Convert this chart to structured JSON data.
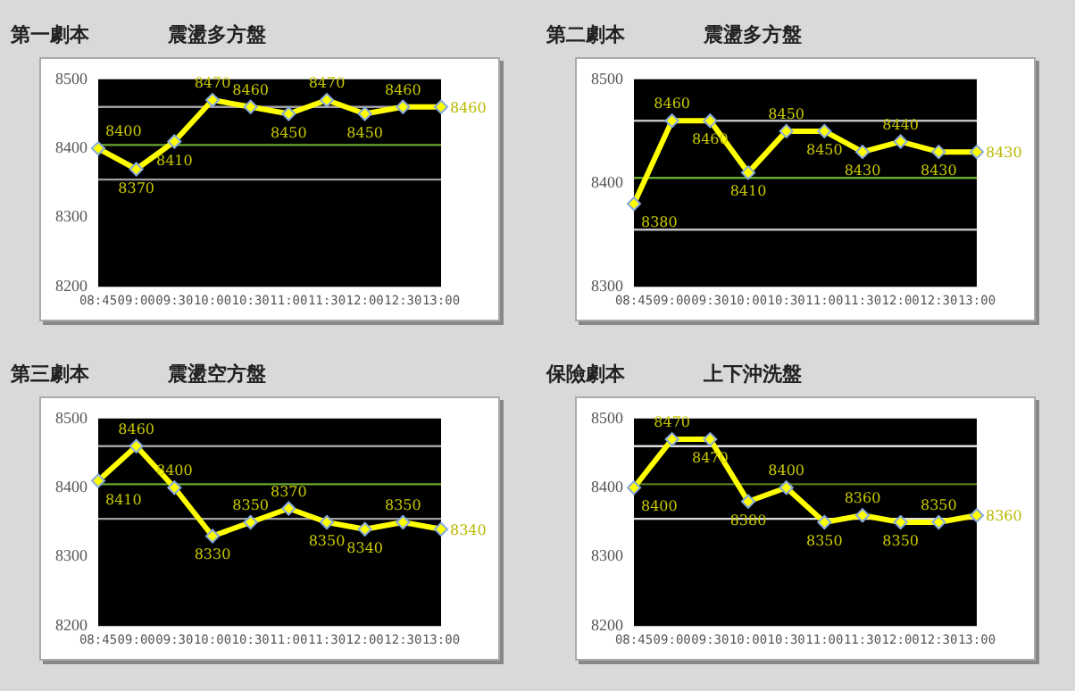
{
  "chart_data": [
    {
      "type": "line",
      "title": "第一劇本",
      "subtitle": "震盪多方盤",
      "categories": [
        "08:45",
        "09:00",
        "09:30",
        "10:00",
        "10:30",
        "11:00",
        "11:30",
        "12:00",
        "12:30",
        "13:00"
      ],
      "series": [
        {
          "color": "#ffff00",
          "values": [
            8400,
            8370,
            8410,
            8470,
            8460,
            8450,
            8470,
            8450,
            8460,
            8460
          ]
        }
      ],
      "ylim": [
        8200,
        8500
      ],
      "yticks": [
        8200,
        8300,
        8400,
        8500
      ],
      "grid": false,
      "legend": false,
      "marker": "diamond",
      "line_style": "solid",
      "data_labels": true,
      "ref_lines": [
        {
          "axis": "y",
          "value": 8460,
          "color": "#a0a0a0"
        },
        {
          "axis": "y",
          "value": 8405,
          "color": "#6aa830"
        },
        {
          "axis": "y",
          "value": 8355,
          "color": "#a0a0a0"
        }
      ]
    },
    {
      "type": "line",
      "title": "第二劇本",
      "subtitle": "震盪多方盤",
      "categories": [
        "08:45",
        "09:00",
        "09:30",
        "10:00",
        "10:30",
        "11:00",
        "11:30",
        "12:00",
        "12:30",
        "13:00"
      ],
      "series": [
        {
          "color": "#ffff00",
          "values": [
            8380,
            8460,
            8460,
            8410,
            8450,
            8450,
            8430,
            8440,
            8430,
            8430
          ]
        }
      ],
      "ylim": [
        8300,
        8500
      ],
      "yticks": [
        8300,
        8400,
        8500
      ],
      "grid": false,
      "legend": false,
      "marker": "diamond",
      "line_style": "solid",
      "data_labels": true,
      "ref_lines": [
        {
          "axis": "y",
          "value": 8460,
          "color": "#c0c0c0"
        },
        {
          "axis": "y",
          "value": 8405,
          "color": "#6aa830"
        },
        {
          "axis": "y",
          "value": 8355,
          "color": "#c0c0c0"
        }
      ]
    },
    {
      "type": "line",
      "title": "第三劇本",
      "subtitle": "震盪空方盤",
      "categories": [
        "08:45",
        "09:00",
        "09:30",
        "10:00",
        "10:30",
        "11:00",
        "11:30",
        "12:00",
        "12:30",
        "13:00"
      ],
      "series": [
        {
          "color": "#ffff00",
          "values": [
            8410,
            8460,
            8400,
            8330,
            8350,
            8370,
            8350,
            8340,
            8350,
            8340
          ]
        }
      ],
      "ylim": [
        8200,
        8500
      ],
      "yticks": [
        8200,
        8300,
        8400,
        8500
      ],
      "grid": false,
      "legend": false,
      "marker": "diamond",
      "line_style": "solid",
      "data_labels": true,
      "ref_lines": [
        {
          "axis": "y",
          "value": 8460,
          "color": "#a0a0a0"
        },
        {
          "axis": "y",
          "value": 8405,
          "color": "#6aa830"
        },
        {
          "axis": "y",
          "value": 8355,
          "color": "#a0a0a0"
        }
      ]
    },
    {
      "type": "line",
      "title": "保險劇本",
      "subtitle": "上下沖洗盤",
      "categories": [
        "08:45",
        "09:00",
        "09:30",
        "10:00",
        "10:30",
        "11:00",
        "11:30",
        "12:00",
        "12:30",
        "13:00"
      ],
      "series": [
        {
          "color": "#ffff00",
          "values": [
            8400,
            8470,
            8470,
            8380,
            8400,
            8350,
            8360,
            8350,
            8350,
            8360
          ]
        }
      ],
      "ylim": [
        8200,
        8500
      ],
      "yticks": [
        8200,
        8300,
        8400,
        8500
      ],
      "grid": false,
      "legend": false,
      "marker": "diamond",
      "line_style": "solid",
      "data_labels": true,
      "ref_lines": [
        {
          "axis": "y",
          "value": 8460,
          "color": "#e0e0e0"
        },
        {
          "axis": "y",
          "value": 8405,
          "color": "#5a7a20"
        },
        {
          "axis": "y",
          "value": 8355,
          "color": "#e0e0e0"
        }
      ]
    }
  ]
}
